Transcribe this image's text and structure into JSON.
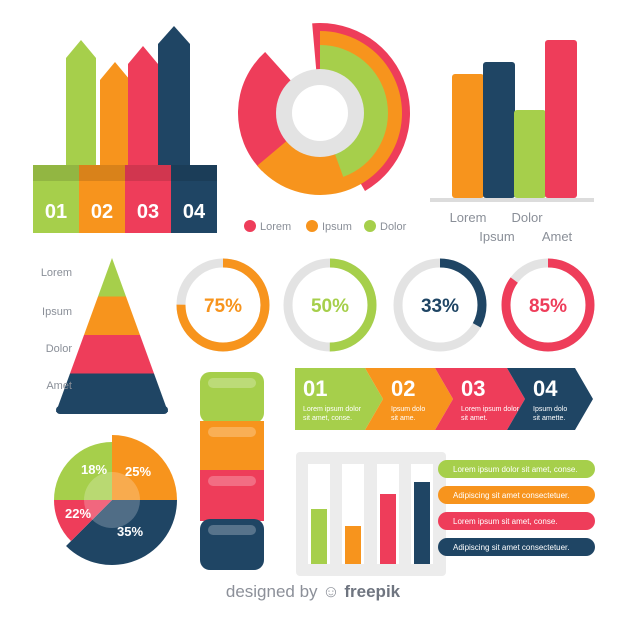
{
  "colors": {
    "green": "#a6cf4b",
    "orange": "#f7941d",
    "red": "#ee3d5a",
    "navy": "#1f4564",
    "gray": "#e3e3e3",
    "text": "#8a8f98"
  },
  "chart_data": [
    {
      "type": "bar",
      "id": "arrow-steps",
      "categories": [
        "01",
        "02",
        "03",
        "04"
      ]
    },
    {
      "type": "pie",
      "id": "spiral-donut",
      "legend": [
        "Lorem",
        "Ipsum",
        "Dolor"
      ]
    },
    {
      "type": "bar",
      "id": "column-bars",
      "categories": [
        "Lorem",
        "Ipsum",
        "Dolor",
        "Amet"
      ],
      "values": [
        62,
        68,
        44,
        79
      ],
      "ylim": [
        0,
        85
      ]
    },
    {
      "type": "bar",
      "id": "pyramid",
      "categories": [
        "Lorem",
        "Ipsum",
        "Dolor",
        "Amet"
      ]
    },
    {
      "type": "pie",
      "id": "progress-rings",
      "values": [
        75,
        50,
        33,
        85
      ],
      "labels": [
        "75%",
        "50%",
        "33%",
        "85%"
      ]
    },
    {
      "type": "bar",
      "id": "chevron-steps",
      "categories": [
        "01",
        "02",
        "03",
        "04"
      ],
      "texts": [
        "Lorem ipsum dolor sit amet, conse.",
        "Ipsum dolo sit ame.",
        "Lorem ipsum dolor sit amet.",
        "Ipsum dolo sit amette."
      ]
    },
    {
      "type": "pie",
      "id": "segment-pie",
      "values": [
        18,
        25,
        35,
        22
      ],
      "labels": [
        "18%",
        "25%",
        "35%",
        "22%"
      ]
    },
    {
      "type": "bar",
      "id": "capsule-stack",
      "categories": [
        "green",
        "orange",
        "red",
        "navy"
      ]
    },
    {
      "type": "bar",
      "id": "framed-bars",
      "values": [
        55,
        38,
        70,
        82
      ],
      "ylim": [
        0,
        100
      ]
    },
    {
      "type": "table",
      "id": "label-rows",
      "rows": [
        "Lorem ipsum dolor sit amet, conse.",
        "Adipiscing sit amet consectetuer.",
        "Lorem ipsum sit amet, conse.",
        "Adipiscing sit amet consectetuer."
      ]
    }
  ],
  "footer": {
    "prefix": "designed by",
    "brand": "freepik"
  }
}
